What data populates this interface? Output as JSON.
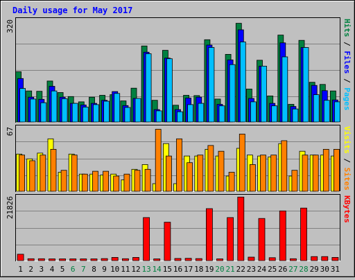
{
  "chart_data": {
    "type": "bar",
    "title": "Daily usage for May 2017",
    "categories": [
      "1",
      "2",
      "3",
      "4",
      "5",
      "6",
      "7",
      "8",
      "9",
      "10",
      "11",
      "12",
      "13",
      "14",
      "15",
      "16",
      "17",
      "18",
      "19",
      "20",
      "21",
      "22",
      "23",
      "24",
      "25",
      "26",
      "27",
      "28",
      "29",
      "30",
      "31"
    ],
    "weekend_days": [
      "6",
      "7",
      "13",
      "14",
      "20",
      "21",
      "27",
      "28"
    ],
    "panels": [
      {
        "id": "hits",
        "ymax_label": "320",
        "ylim": [
          0,
          335
        ],
        "axis_labels": [
          "Pages",
          "Files",
          "Hits"
        ],
        "series": [
          {
            "name": "Hits",
            "color": "#008040",
            "values": [
              162,
              100,
              99,
              132,
              95,
              82,
              65,
              80,
              86,
              88,
              68,
              109,
              245,
              70,
              231,
              54,
              86,
              85,
              265,
              74,
              218,
              318,
              106,
              199,
              84,
              280,
              57,
              263,
              128,
              121,
              100
            ]
          },
          {
            "name": "Files",
            "color": "#0000ff",
            "values": [
              140,
              80,
              73,
              115,
              80,
              60,
              55,
              60,
              70,
              98,
              53,
              76,
              225,
              40,
              206,
              40,
              77,
              80,
              248,
              57,
              200,
              297,
              76,
              180,
              60,
              255,
              50,
              240,
              118,
              101,
              71
            ]
          },
          {
            "name": "Pages",
            "color": "#00bfff",
            "values": [
              108,
              74,
              62,
              100,
              75,
              60,
              48,
              56,
              67,
              92,
              47,
              76,
              220,
              36,
              204,
              33,
              56,
              60,
              240,
              52,
              185,
              258,
              65,
              180,
              52,
              210,
              42,
              240,
              88,
              70,
              65
            ]
          }
        ]
      },
      {
        "id": "visits",
        "ymax_label": "67",
        "ylim": [
          0,
          69
        ],
        "axis_labels": [
          "Sites",
          "Visits"
        ],
        "series": [
          {
            "name": "Visits",
            "color": "#ffff00",
            "values": [
              39,
              34,
              40,
              55,
              20,
              39,
              18,
              18,
              17,
              18,
              12,
              23,
              28,
              8,
              50,
              8,
              37,
              37,
              44,
              37,
              16,
              45,
              38,
              37,
              36,
              50,
              16,
              42,
              38,
              38,
              37
            ]
          },
          {
            "name": "Sites",
            "color": "#ff8000",
            "values": [
              38,
              32,
              38,
              44,
              22,
              38,
              18,
              21,
              21,
              16,
              18,
              22,
              23,
              65,
              37,
              55,
              30,
              38,
              48,
              42,
              20,
              60,
              28,
              38,
              38,
              53,
              22,
              38,
              38,
              44,
              44
            ]
          }
        ]
      },
      {
        "id": "kbytes",
        "ymax_label": "21826",
        "ylim": [
          0,
          22800
        ],
        "axis_labels": [
          "KBytes"
        ],
        "series": [
          {
            "name": "KBytes",
            "color": "#ff0000",
            "values": [
              2200,
              650,
              650,
              600,
              600,
              600,
              600,
              600,
              700,
              1100,
              650,
              1100,
              14900,
              600,
              13300,
              750,
              800,
              700,
              18000,
              600,
              14900,
              22000,
              1200,
              14600,
              1000,
              17200,
              650,
              18200,
              1400,
              1400,
              1100
            ]
          }
        ]
      }
    ]
  }
}
